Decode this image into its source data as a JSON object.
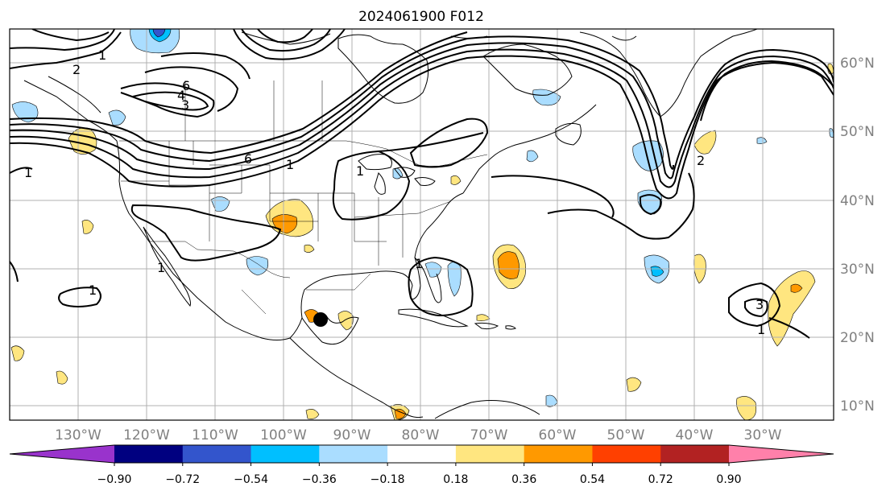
{
  "title": "2024061900 F012",
  "lon_labels": [
    "130°W",
    "120°W",
    "110°W",
    "100°W",
    "90°W",
    "80°W",
    "70°W",
    "60°W",
    "50°W",
    "40°W",
    "30°W"
  ],
  "lat_labels": [
    "60°N",
    "50°N",
    "40°N",
    "30°N",
    "20°N",
    "10°N"
  ],
  "contour_labels": [
    "1",
    "2",
    "3",
    "4",
    "6",
    "6",
    "1",
    "1",
    "1",
    "2",
    "1",
    "3",
    "1",
    "1",
    "1"
  ],
  "colorbar": {
    "ticks": [
      "−0.90",
      "−0.72",
      "−0.54",
      "−0.36",
      "−0.18",
      "0.18",
      "0.36",
      "0.54",
      "0.72",
      "0.90"
    ],
    "colors": [
      "#9933cc",
      "#000080",
      "#3355cc",
      "#00bfff",
      "#aaddff",
      "#ffffff",
      "#ffe680",
      "#ff9900",
      "#ff4000",
      "#b22222",
      "#ff80aa"
    ]
  },
  "colors": {
    "contour": "#000000",
    "grid": "#b0b0b0",
    "coast": "#000000",
    "pos_weak": "#ffe680",
    "pos_mid": "#ff9900",
    "neg_weak": "#aaddff",
    "neg_mid": "#00bfff",
    "neg_strong": "#3355cc",
    "axis_label": "#808080"
  },
  "markers": [
    {
      "name": "storm-center",
      "lon": -94.5,
      "lat": 22.8
    }
  ]
}
